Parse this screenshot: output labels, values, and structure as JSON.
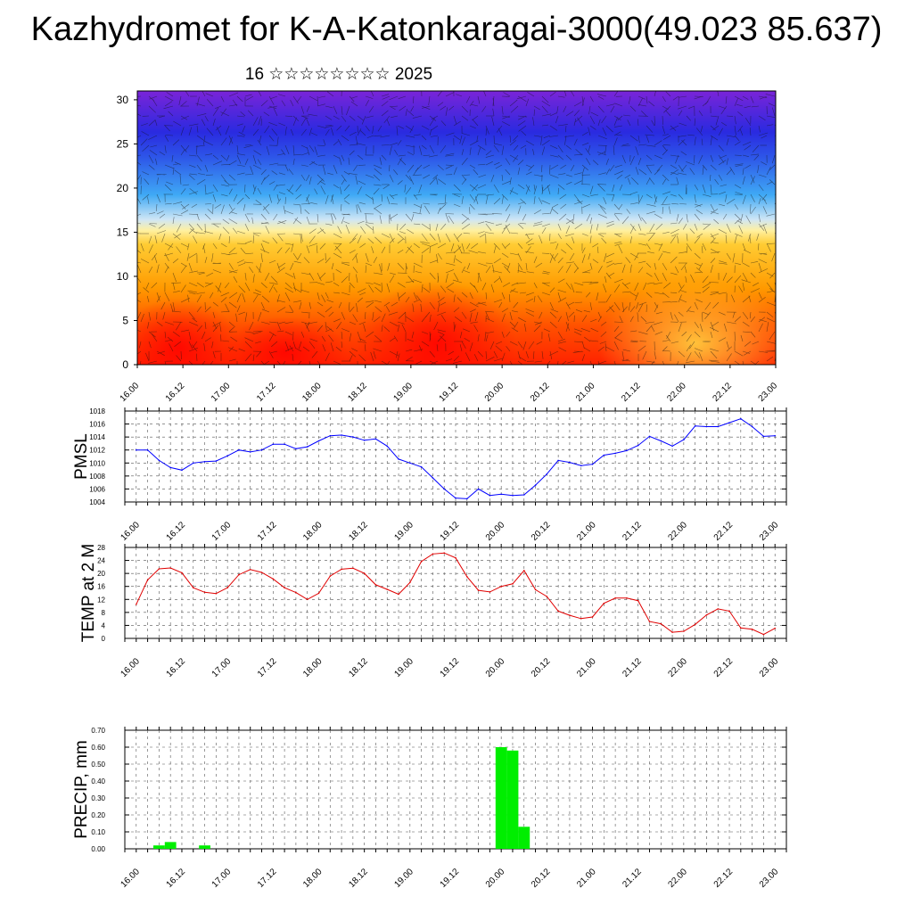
{
  "title": "Kazhydromet for K-A-Katonkaragai-3000(49.023 85.637)",
  "subtitle": "16 ☆☆☆☆☆☆☆☆ 2025",
  "x_ticks": [
    "16.00",
    "16.12",
    "17.00",
    "17.12",
    "18.00",
    "18.12",
    "19.00",
    "19.12",
    "20.00",
    "20.12",
    "21.00",
    "21.12",
    "22.00",
    "22.12",
    "23.00"
  ],
  "chart_data": [
    {
      "type": "heatmap",
      "title": "",
      "ylabel": "",
      "ylim": [
        0,
        31
      ],
      "yticks": [
        "0",
        "5",
        "10",
        "15",
        "20",
        "25",
        "30"
      ],
      "note_colors": [
        "#ff0000",
        "#ff9900",
        "#ffe680",
        "#cfe6f5",
        "#3fa9f5",
        "#2f4fe0",
        "#6a20d8"
      ]
    },
    {
      "type": "line",
      "ylabel": "PMSL",
      "ylim": [
        1004,
        1018
      ],
      "yticks": [
        "1004",
        "1006",
        "1008",
        "1010",
        "1012",
        "1014",
        "1016",
        "1018"
      ],
      "color": "#0000ff",
      "x": [
        16.0,
        16.125,
        16.25,
        16.375,
        16.5,
        16.625,
        16.75,
        16.875,
        17.0,
        17.125,
        17.25,
        17.375,
        17.5,
        17.625,
        17.75,
        17.875,
        18.0,
        18.125,
        18.25,
        18.375,
        18.5,
        18.625,
        18.75,
        18.875,
        19.0,
        19.125,
        19.25,
        19.375,
        19.5,
        19.625,
        19.75,
        19.875,
        20.0,
        20.125,
        20.25,
        20.375,
        20.5,
        20.625,
        20.75,
        20.875,
        21.0,
        21.125,
        21.25,
        21.375,
        21.5,
        21.625,
        21.75,
        21.875,
        22.0,
        22.125,
        22.25,
        22.375,
        22.5,
        22.625,
        22.75,
        22.875,
        23.0
      ],
      "values": [
        1012,
        1012,
        1010.4,
        1009.3,
        1008.9,
        1010,
        1010.2,
        1010.3,
        1011.1,
        1012,
        1011.7,
        1012,
        1012.9,
        1012.9,
        1012.2,
        1012.5,
        1013.4,
        1014.2,
        1014.3,
        1014,
        1013.5,
        1013.7,
        1012.6,
        1010.6,
        1010,
        1009.4,
        1007.7,
        1006,
        1004.6,
        1004.5,
        1006,
        1005,
        1005.2,
        1005,
        1005.1,
        1006.6,
        1008.3,
        1010.4,
        1010.1,
        1009.6,
        1009.8,
        1011.2,
        1011.5,
        1011.9,
        1012.7,
        1014.1,
        1013.4,
        1012.6,
        1013.6,
        1015.7,
        1015.6,
        1015.6,
        1016.2,
        1016.8,
        1015.6,
        1014.1,
        1014.2
      ]
    },
    {
      "type": "line",
      "ylabel": "TEMP at 2 M",
      "ylim": [
        0,
        28
      ],
      "yticks": [
        "0",
        "4",
        "8",
        "12",
        "16",
        "20",
        "24",
        "28"
      ],
      "color": "#e00000",
      "x": [
        16.0,
        16.125,
        16.25,
        16.375,
        16.5,
        16.625,
        16.75,
        16.875,
        17.0,
        17.125,
        17.25,
        17.375,
        17.5,
        17.625,
        17.75,
        17.875,
        18.0,
        18.125,
        18.25,
        18.375,
        18.5,
        18.625,
        18.75,
        18.875,
        19.0,
        19.125,
        19.25,
        19.375,
        19.5,
        19.625,
        19.75,
        19.875,
        20.0,
        20.125,
        20.25,
        20.375,
        20.5,
        20.625,
        20.75,
        20.875,
        21.0,
        21.125,
        21.25,
        21.375,
        21.5,
        21.625,
        21.75,
        21.875,
        22.0,
        22.125,
        22.25,
        22.375,
        22.5,
        22.625,
        22.75,
        22.875,
        23.0
      ],
      "values": [
        10.5,
        18,
        21.4,
        21.7,
        20.2,
        15.6,
        14.2,
        13.8,
        15.6,
        19.6,
        21.2,
        20.3,
        18.3,
        15.6,
        14.1,
        12,
        13.9,
        19.2,
        21.3,
        21.6,
        20,
        16.5,
        15.1,
        13.6,
        17.2,
        23.7,
        26,
        26.3,
        24.8,
        19,
        14.8,
        14.3,
        16,
        16.8,
        20.9,
        15,
        12.9,
        8.4,
        7.1,
        6.1,
        6.6,
        10.8,
        12.4,
        12.4,
        11.6,
        5.2,
        4.5,
        1.9,
        2.2,
        4.3,
        7.2,
        9.1,
        8.4,
        3.2,
        2.8,
        1.2,
        3.1
      ]
    },
    {
      "type": "bar",
      "ylabel": "PRECIP, mm",
      "ylim": [
        0,
        0.7
      ],
      "yticks": [
        "0.00",
        "0.10",
        "0.20",
        "0.30",
        "0.40",
        "0.50",
        "0.60",
        "0.70"
      ],
      "color": "#00ee00",
      "x": [
        16.25,
        16.375,
        16.75,
        20.0,
        20.125,
        20.25
      ],
      "values": [
        0.02,
        0.04,
        0.02,
        0.6,
        0.58,
        0.13
      ]
    }
  ]
}
